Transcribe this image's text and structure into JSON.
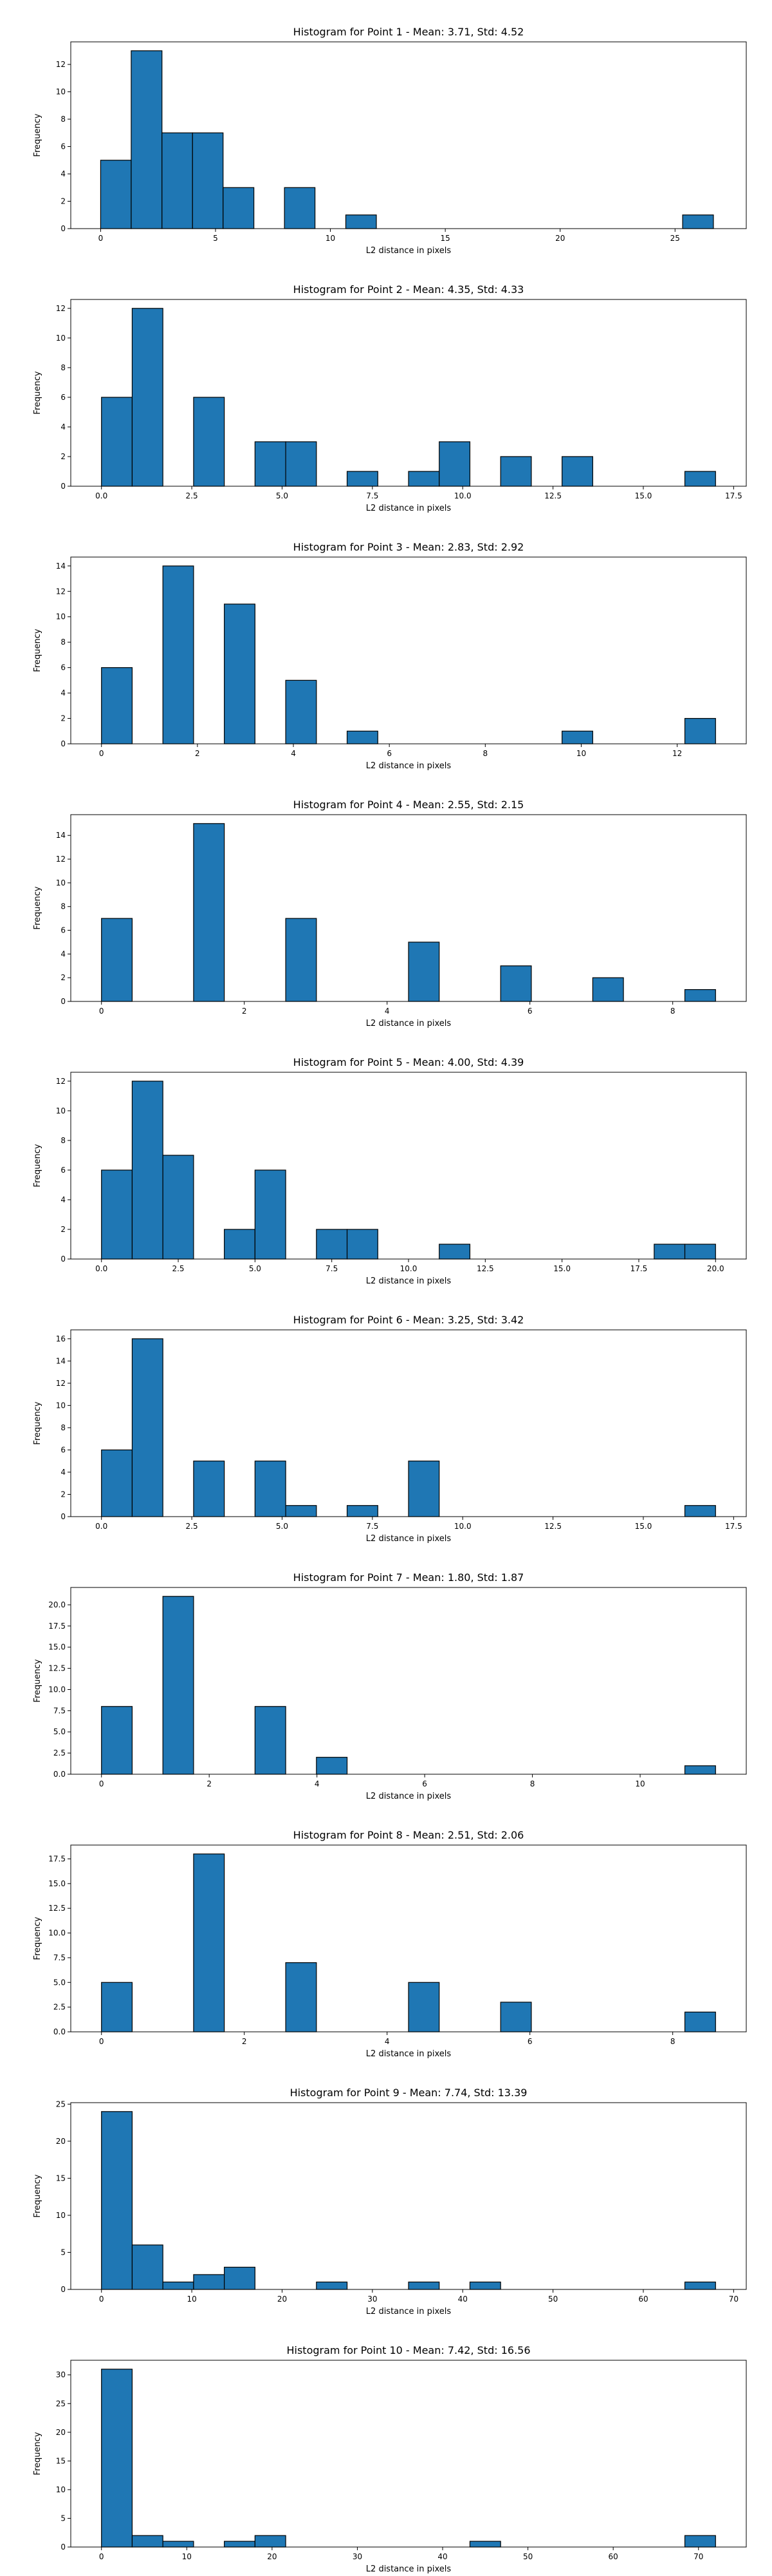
{
  "chart_data": [
    {
      "type": "bar",
      "title": "Histogram for Point 1 - Mean: 3.71, Std: 4.52",
      "xlabel": "L2 distance in pixels",
      "ylabel": "Frequency",
      "xlim": [
        -1.3,
        28.1
      ],
      "ylim": [
        0,
        13.65
      ],
      "xticks": [
        0,
        5,
        10,
        15,
        20,
        25
      ],
      "xtick_labels": [
        "0",
        "5",
        "10",
        "15",
        "20",
        "25"
      ],
      "yticks": [
        0,
        2,
        4,
        6,
        8,
        10,
        12
      ],
      "ytick_labels": [
        "0",
        "2",
        "4",
        "6",
        "8",
        "10",
        "12"
      ],
      "bins": [
        [
          0,
          1.33,
          5
        ],
        [
          1.33,
          2.67,
          13
        ],
        [
          2.67,
          4.0,
          7
        ],
        [
          4.0,
          5.33,
          7
        ],
        [
          5.33,
          6.67,
          3
        ],
        [
          8.0,
          9.33,
          3
        ],
        [
          10.67,
          12.0,
          1
        ],
        [
          25.33,
          26.67,
          1
        ]
      ]
    },
    {
      "type": "bar",
      "title": "Histogram for Point 2 - Mean: 4.35, Std: 4.33",
      "xlabel": "L2 distance in pixels",
      "ylabel": "Frequency",
      "xlim": [
        -0.85,
        17.85
      ],
      "ylim": [
        0,
        12.6
      ],
      "xticks": [
        0,
        2.5,
        5,
        7.5,
        10,
        12.5,
        15,
        17.5
      ],
      "xtick_labels": [
        "0.0",
        "2.5",
        "5.0",
        "7.5",
        "10.0",
        "12.5",
        "15.0",
        "17.5"
      ],
      "yticks": [
        0,
        2,
        4,
        6,
        8,
        10,
        12
      ],
      "ytick_labels": [
        "0",
        "2",
        "4",
        "6",
        "8",
        "10",
        "12"
      ],
      "bins": [
        [
          0,
          0.85,
          6
        ],
        [
          0.85,
          1.7,
          12
        ],
        [
          2.55,
          3.4,
          6
        ],
        [
          4.25,
          5.1,
          3
        ],
        [
          5.1,
          5.95,
          3
        ],
        [
          6.8,
          7.65,
          1
        ],
        [
          8.5,
          9.35,
          1
        ],
        [
          9.35,
          10.2,
          3
        ],
        [
          11.05,
          11.9,
          2
        ],
        [
          12.75,
          13.6,
          2
        ],
        [
          16.15,
          17.0,
          1
        ]
      ]
    },
    {
      "type": "bar",
      "title": "Histogram for Point 3 - Mean: 2.83, Std: 2.92",
      "xlabel": "L2 distance in pixels",
      "ylabel": "Frequency",
      "xlim": [
        -0.64,
        13.44
      ],
      "ylim": [
        0,
        14.7
      ],
      "xticks": [
        0,
        2,
        4,
        6,
        8,
        10,
        12
      ],
      "xtick_labels": [
        "0",
        "2",
        "4",
        "6",
        "8",
        "10",
        "12"
      ],
      "yticks": [
        0,
        2,
        4,
        6,
        8,
        10,
        12,
        14
      ],
      "ytick_labels": [
        "0",
        "2",
        "4",
        "6",
        "8",
        "10",
        "12",
        "14"
      ],
      "bins": [
        [
          0,
          0.64,
          6
        ],
        [
          1.28,
          1.92,
          14
        ],
        [
          2.56,
          3.2,
          11
        ],
        [
          3.84,
          4.48,
          5
        ],
        [
          5.12,
          5.76,
          1
        ],
        [
          9.6,
          10.24,
          1
        ],
        [
          12.16,
          12.8,
          2
        ]
      ]
    },
    {
      "type": "bar",
      "title": "Histogram for Point 4 - Mean: 2.55, Std: 2.15",
      "xlabel": "L2 distance in pixels",
      "ylabel": "Frequency",
      "xlim": [
        -0.43,
        9.03
      ],
      "ylim": [
        0,
        15.75
      ],
      "xticks": [
        0,
        2,
        4,
        6,
        8
      ],
      "xtick_labels": [
        "0",
        "2",
        "4",
        "6",
        "8"
      ],
      "yticks": [
        0,
        2,
        4,
        6,
        8,
        10,
        12,
        14
      ],
      "ytick_labels": [
        "0",
        "2",
        "4",
        "6",
        "8",
        "10",
        "12",
        "14"
      ],
      "bins": [
        [
          0,
          0.43,
          7
        ],
        [
          1.29,
          1.72,
          15
        ],
        [
          2.58,
          3.01,
          7
        ],
        [
          4.3,
          4.73,
          5
        ],
        [
          5.59,
          6.02,
          3
        ],
        [
          6.88,
          7.31,
          2
        ],
        [
          8.17,
          8.6,
          1
        ]
      ]
    },
    {
      "type": "bar",
      "title": "Histogram for Point 5 - Mean: 4.00, Std: 4.39",
      "xlabel": "L2 distance in pixels",
      "ylabel": "Frequency",
      "xlim": [
        -1.0,
        21.0
      ],
      "ylim": [
        0,
        12.6
      ],
      "xticks": [
        0,
        2.5,
        5,
        7.5,
        10,
        12.5,
        15,
        17.5,
        20
      ],
      "xtick_labels": [
        "0.0",
        "2.5",
        "5.0",
        "7.5",
        "10.0",
        "12.5",
        "15.0",
        "17.5",
        "20.0"
      ],
      "yticks": [
        0,
        2,
        4,
        6,
        8,
        10,
        12
      ],
      "ytick_labels": [
        "0",
        "2",
        "4",
        "6",
        "8",
        "10",
        "12"
      ],
      "bins": [
        [
          0,
          1,
          6
        ],
        [
          1,
          2,
          12
        ],
        [
          2,
          3,
          7
        ],
        [
          4,
          5,
          2
        ],
        [
          5,
          6,
          6
        ],
        [
          7,
          8,
          2
        ],
        [
          8,
          9,
          2
        ],
        [
          11,
          12,
          1
        ],
        [
          18,
          19,
          1
        ],
        [
          19,
          20,
          1
        ]
      ]
    },
    {
      "type": "bar",
      "title": "Histogram for Point 6 - Mean: 3.25, Std: 3.42",
      "xlabel": "L2 distance in pixels",
      "ylabel": "Frequency",
      "xlim": [
        -0.85,
        17.85
      ],
      "ylim": [
        0,
        16.8
      ],
      "xticks": [
        0,
        2.5,
        5,
        7.5,
        10,
        12.5,
        15,
        17.5
      ],
      "xtick_labels": [
        "0.0",
        "2.5",
        "5.0",
        "7.5",
        "10.0",
        "12.5",
        "15.0",
        "17.5"
      ],
      "yticks": [
        0,
        2,
        4,
        6,
        8,
        10,
        12,
        14,
        16
      ],
      "ytick_labels": [
        "0",
        "2",
        "4",
        "6",
        "8",
        "10",
        "12",
        "14",
        "16"
      ],
      "bins": [
        [
          0,
          0.85,
          6
        ],
        [
          0.85,
          1.7,
          16
        ],
        [
          2.55,
          3.4,
          5
        ],
        [
          4.25,
          5.1,
          5
        ],
        [
          5.1,
          5.95,
          1
        ],
        [
          6.8,
          7.65,
          1
        ],
        [
          8.5,
          9.35,
          5
        ],
        [
          16.15,
          17.0,
          1
        ]
      ]
    },
    {
      "type": "bar",
      "title": "Histogram for Point 7 - Mean: 1.80, Std: 1.87",
      "xlabel": "L2 distance in pixels",
      "ylabel": "Frequency",
      "xlim": [
        -0.57,
        11.97
      ],
      "ylim": [
        0,
        22.05
      ],
      "xticks": [
        0,
        2,
        4,
        6,
        8,
        10
      ],
      "xtick_labels": [
        "0",
        "2",
        "4",
        "6",
        "8",
        "10"
      ],
      "yticks": [
        0,
        2.5,
        5,
        7.5,
        10,
        12.5,
        15,
        17.5,
        20
      ],
      "ytick_labels": [
        "0.0",
        "2.5",
        "5.0",
        "7.5",
        "10.0",
        "12.5",
        "15.0",
        "17.5",
        "20.0"
      ],
      "bins": [
        [
          0,
          0.57,
          8
        ],
        [
          1.14,
          1.71,
          21
        ],
        [
          2.85,
          3.42,
          8
        ],
        [
          3.99,
          4.56,
          2
        ],
        [
          10.83,
          11.4,
          1
        ]
      ]
    },
    {
      "type": "bar",
      "title": "Histogram for Point 8 - Mean: 2.51, Std: 2.06",
      "xlabel": "L2 distance in pixels",
      "ylabel": "Frequency",
      "xlim": [
        -0.43,
        9.03
      ],
      "ylim": [
        0,
        18.9
      ],
      "xticks": [
        0,
        2,
        4,
        6,
        8
      ],
      "xtick_labels": [
        "0",
        "2",
        "4",
        "6",
        "8"
      ],
      "yticks": [
        0,
        2.5,
        5,
        7.5,
        10,
        12.5,
        15,
        17.5
      ],
      "ytick_labels": [
        "0.0",
        "2.5",
        "5.0",
        "7.5",
        "10.0",
        "12.5",
        "15.0",
        "17.5"
      ],
      "bins": [
        [
          0,
          0.43,
          5
        ],
        [
          1.29,
          1.72,
          18
        ],
        [
          2.58,
          3.01,
          7
        ],
        [
          4.3,
          4.73,
          5
        ],
        [
          5.59,
          6.02,
          3
        ],
        [
          8.17,
          8.6,
          2
        ]
      ]
    },
    {
      "type": "bar",
      "title": "Histogram for Point 9 - Mean: 7.74, Std: 13.39",
      "xlabel": "L2 distance in pixels",
      "ylabel": "Frequency",
      "xlim": [
        -3.4,
        71.4
      ],
      "ylim": [
        0,
        25.2
      ],
      "xticks": [
        0,
        10,
        20,
        30,
        40,
        50,
        60,
        70
      ],
      "xtick_labels": [
        "0",
        "10",
        "20",
        "30",
        "40",
        "50",
        "60",
        "70"
      ],
      "yticks": [
        0,
        5,
        10,
        15,
        20,
        25
      ],
      "ytick_labels": [
        "0",
        "5",
        "10",
        "15",
        "20",
        "25"
      ],
      "bins": [
        [
          0,
          3.4,
          24
        ],
        [
          3.4,
          6.8,
          6
        ],
        [
          6.8,
          10.2,
          1
        ],
        [
          10.2,
          13.6,
          2
        ],
        [
          13.6,
          17.0,
          3
        ],
        [
          23.8,
          27.2,
          1
        ],
        [
          34.0,
          37.4,
          1
        ],
        [
          40.8,
          44.2,
          1
        ],
        [
          64.6,
          68.0,
          1
        ]
      ]
    },
    {
      "type": "bar",
      "title": "Histogram for Point 10 - Mean: 7.42, Std: 16.56",
      "xlabel": "L2 distance in pixels",
      "ylabel": "Frequency",
      "xlim": [
        -3.6,
        75.6
      ],
      "ylim": [
        0,
        32.55
      ],
      "xticks": [
        0,
        10,
        20,
        30,
        40,
        50,
        60,
        70
      ],
      "xtick_labels": [
        "0",
        "10",
        "20",
        "30",
        "40",
        "50",
        "60",
        "70"
      ],
      "yticks": [
        0,
        5,
        10,
        15,
        20,
        25,
        30
      ],
      "ytick_labels": [
        "0",
        "5",
        "10",
        "15",
        "20",
        "25",
        "30"
      ],
      "bins": [
        [
          0,
          3.6,
          31
        ],
        [
          3.6,
          7.2,
          2
        ],
        [
          7.2,
          10.8,
          1
        ],
        [
          14.4,
          18.0,
          1
        ],
        [
          18.0,
          21.6,
          2
        ],
        [
          43.2,
          46.8,
          1
        ],
        [
          68.4,
          72.0,
          2
        ]
      ]
    }
  ]
}
